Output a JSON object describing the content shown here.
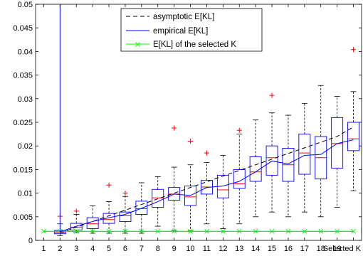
{
  "chart_data": {
    "type": "boxplot",
    "title": "",
    "xlabel": "",
    "ylabel": "",
    "xlim": [
      0.5,
      20.5
    ],
    "ylim": [
      0,
      0.05
    ],
    "x_tick_labels": [
      "1",
      "2",
      "3",
      "4",
      "5",
      "6",
      "7",
      "8",
      "9",
      "10",
      "11",
      "12",
      "13",
      "14",
      "15",
      "16",
      "17",
      "18",
      "19",
      "Selected K"
    ],
    "y_ticks": [
      0,
      0.005,
      0.01,
      0.015,
      0.02,
      0.025,
      0.03,
      0.035,
      0.04,
      0.045,
      0.05
    ],
    "y_tick_labels": [
      "0",
      "0.005",
      "0.01",
      "0.015",
      "0.02",
      "0.025",
      "0.03",
      "0.035",
      "0.04",
      "0.045",
      "0.05"
    ],
    "legend": {
      "placement": "top-center",
      "entries": [
        {
          "label": "asymptotic E[KL]",
          "style": "dashed",
          "color": "#000000"
        },
        {
          "label": "empirical E[KL]",
          "style": "solid",
          "color": "#0000ff"
        },
        {
          "label": "E[KL] of the selected K",
          "style": "x-marker-line",
          "color": "#00ff00"
        }
      ]
    },
    "boxes": [
      {
        "x": 2,
        "q1": 0.0014,
        "median": 0.0017,
        "q3": 0.0021,
        "whisker_low": 0.001,
        "whisker_high": 0.0035,
        "outliers": [
          0.0051
        ]
      },
      {
        "x": 3,
        "q1": 0.0022,
        "median": 0.0028,
        "q3": 0.0036,
        "whisker_low": 0.0016,
        "whisker_high": 0.0055,
        "outliers": [
          0.0062
        ]
      },
      {
        "x": 4,
        "q1": 0.0025,
        "median": 0.0035,
        "q3": 0.0048,
        "whisker_low": 0.0015,
        "whisker_high": 0.0073,
        "outliers": []
      },
      {
        "x": 5,
        "q1": 0.0036,
        "median": 0.0044,
        "q3": 0.0057,
        "whisker_low": 0.0015,
        "whisker_high": 0.0082,
        "outliers": [
          0.0117
        ]
      },
      {
        "x": 6,
        "q1": 0.004,
        "median": 0.0052,
        "q3": 0.006,
        "whisker_low": 0.0015,
        "whisker_high": 0.0093,
        "outliers": [
          0.01
        ]
      },
      {
        "x": 7,
        "q1": 0.0055,
        "median": 0.0067,
        "q3": 0.0083,
        "whisker_low": 0.0015,
        "whisker_high": 0.0122,
        "outliers": []
      },
      {
        "x": 8,
        "q1": 0.007,
        "median": 0.009,
        "q3": 0.0108,
        "whisker_low": 0.003,
        "whisker_high": 0.0135,
        "outliers": []
      },
      {
        "x": 9,
        "q1": 0.0085,
        "median": 0.0098,
        "q3": 0.0112,
        "whisker_low": 0.002,
        "whisker_high": 0.0155,
        "outliers": [
          0.0238
        ]
      },
      {
        "x": 10,
        "q1": 0.0074,
        "median": 0.0092,
        "q3": 0.0115,
        "whisker_low": 0.002,
        "whisker_high": 0.016,
        "outliers": [
          0.021
        ]
      },
      {
        "x": 11,
        "q1": 0.0098,
        "median": 0.0113,
        "q3": 0.0127,
        "whisker_low": 0.0035,
        "whisker_high": 0.0165,
        "outliers": [
          0.0185
        ]
      },
      {
        "x": 12,
        "q1": 0.009,
        "median": 0.0107,
        "q3": 0.0138,
        "whisker_low": 0.0025,
        "whisker_high": 0.018,
        "outliers": []
      },
      {
        "x": 13,
        "q1": 0.011,
        "median": 0.012,
        "q3": 0.015,
        "whisker_low": 0.0035,
        "whisker_high": 0.0225,
        "outliers": [
          0.0233
        ]
      },
      {
        "x": 14,
        "q1": 0.0125,
        "median": 0.0145,
        "q3": 0.0177,
        "whisker_low": 0.005,
        "whisker_high": 0.0255,
        "outliers": []
      },
      {
        "x": 15,
        "q1": 0.0138,
        "median": 0.0175,
        "q3": 0.02,
        "whisker_low": 0.006,
        "whisker_high": 0.027,
        "outliers": [
          0.0307
        ]
      },
      {
        "x": 16,
        "q1": 0.0125,
        "median": 0.016,
        "q3": 0.0195,
        "whisker_low": 0.005,
        "whisker_high": 0.0265,
        "outliers": []
      },
      {
        "x": 17,
        "q1": 0.014,
        "median": 0.0185,
        "q3": 0.0225,
        "whisker_low": 0.006,
        "whisker_high": 0.029,
        "outliers": []
      },
      {
        "x": 18,
        "q1": 0.013,
        "median": 0.0175,
        "q3": 0.022,
        "whisker_low": 0.005,
        "whisker_high": 0.0328,
        "outliers": []
      },
      {
        "x": 19,
        "q1": 0.0153,
        "median": 0.0205,
        "q3": 0.026,
        "whisker_low": 0.007,
        "whisker_high": 0.0305,
        "outliers": []
      },
      {
        "x": 20,
        "q1": 0.019,
        "median": 0.0215,
        "q3": 0.025,
        "whisker_low": 0.0105,
        "whisker_high": 0.0315,
        "outliers": [
          0.0404
        ]
      }
    ],
    "selected_k_box": {
      "x": 20.85,
      "q1": 0.0013,
      "median": 0.0018,
      "q3": 0.0028,
      "whisker_low": 0.0007,
      "whisker_high": 0.0052,
      "outliers": []
    },
    "series": [
      {
        "name": "asymptotic E[KL]",
        "x": [
          2,
          3,
          4,
          5,
          6,
          7,
          8,
          9,
          10,
          11,
          12,
          13,
          14,
          15,
          16,
          17,
          18,
          19,
          20
        ],
        "values": [
          0.0015,
          0.0028,
          0.004,
          0.0052,
          0.0064,
          0.0076,
          0.0088,
          0.01,
          0.0112,
          0.0124,
          0.0136,
          0.0148,
          0.016,
          0.0172,
          0.0184,
          0.0196,
          0.0208,
          0.022,
          0.024
        ]
      },
      {
        "name": "empirical E[KL]",
        "x": [
          2,
          2,
          3,
          4,
          5,
          6,
          7,
          8,
          9,
          10,
          11,
          12,
          13,
          14,
          15,
          16,
          17,
          18,
          19,
          20
        ],
        "values": [
          0.05,
          0.0018,
          0.003,
          0.004,
          0.0048,
          0.0055,
          0.0068,
          0.0082,
          0.0098,
          0.0095,
          0.0112,
          0.0115,
          0.0125,
          0.0145,
          0.0168,
          0.0162,
          0.018,
          0.0182,
          0.0205,
          0.0213
        ]
      },
      {
        "name": "E[KL] of the selected K",
        "x": [
          1,
          2,
          3,
          4,
          5,
          6,
          7,
          8,
          9,
          10,
          11,
          12,
          13,
          14,
          15,
          16,
          17,
          18,
          19,
          20
        ],
        "values": [
          0.0019,
          0.0019,
          0.0019,
          0.0019,
          0.0019,
          0.0019,
          0.0019,
          0.0019,
          0.0019,
          0.0019,
          0.0019,
          0.0019,
          0.0019,
          0.0019,
          0.0019,
          0.0019,
          0.0019,
          0.0019,
          0.0019,
          0.0019
        ]
      }
    ],
    "colors": {
      "box": "#0000ff",
      "median": "#ff0000",
      "whisker": "#000000",
      "outlier": "#ff0000",
      "selected_line": "#00ff00"
    },
    "grid": false
  }
}
